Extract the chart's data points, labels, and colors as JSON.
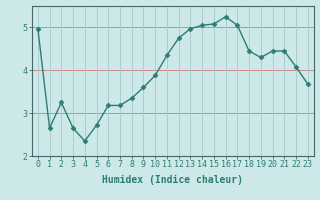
{
  "x": [
    0,
    1,
    2,
    3,
    4,
    5,
    6,
    7,
    8,
    9,
    10,
    11,
    12,
    13,
    14,
    15,
    16,
    17,
    18,
    19,
    20,
    21,
    22,
    23
  ],
  "y": [
    4.97,
    2.65,
    3.25,
    2.65,
    2.35,
    2.72,
    3.18,
    3.18,
    3.35,
    3.6,
    3.88,
    4.35,
    4.75,
    4.97,
    5.05,
    5.08,
    5.25,
    5.05,
    4.45,
    4.3,
    4.45,
    4.45,
    4.08,
    3.68
  ],
  "line_color": "#2e7d72",
  "marker": "D",
  "markersize": 2.5,
  "linewidth": 1.0,
  "background_color": "#cce8e8",
  "grid_color_v": "#aacfcf",
  "grid_color_h": "#cc8888",
  "xlabel": "Humidex (Indice chaleur)",
  "xlabel_fontsize": 7,
  "tick_fontsize": 6,
  "xlim": [
    -0.5,
    23.5
  ],
  "ylim": [
    2.0,
    5.5
  ],
  "yticks": [
    2,
    3,
    4,
    5
  ],
  "xticks": [
    0,
    1,
    2,
    3,
    4,
    5,
    6,
    7,
    8,
    9,
    10,
    11,
    12,
    13,
    14,
    15,
    16,
    17,
    18,
    19,
    20,
    21,
    22,
    23
  ]
}
